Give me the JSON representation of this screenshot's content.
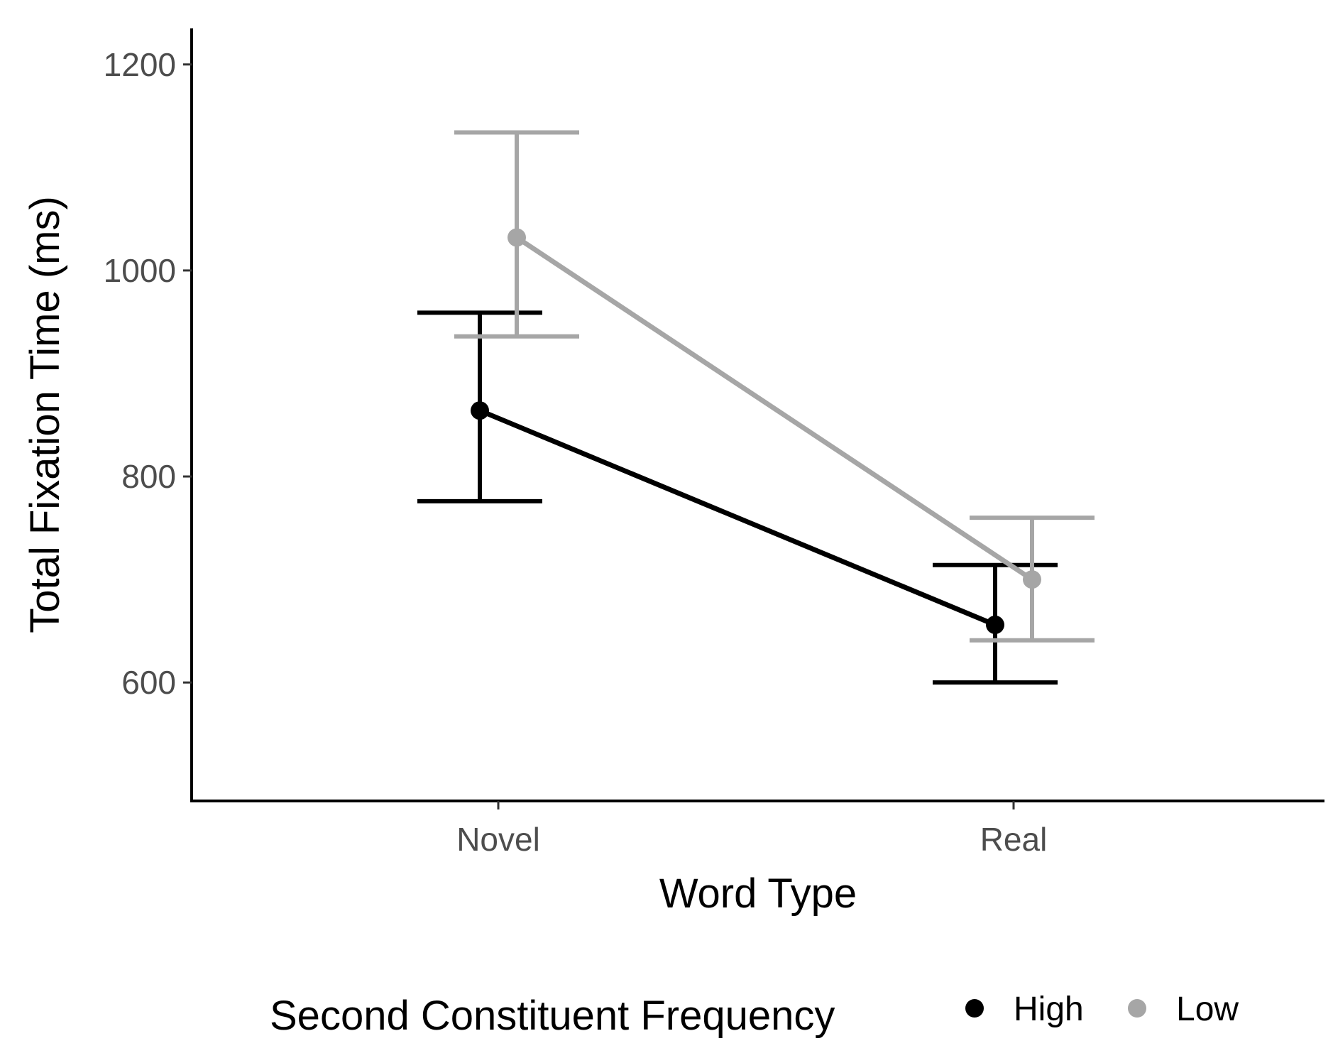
{
  "chart_data": {
    "type": "line",
    "title": "",
    "xlabel": "Word Type",
    "ylabel": "Total Fixation Time (ms)",
    "categories": [
      "Novel",
      "Real"
    ],
    "ylim": [
      485,
      1235
    ],
    "yticks": [
      "600",
      "800",
      "1000",
      "1200"
    ],
    "grid": false,
    "legend": {
      "title": "Second Constituent Frequency",
      "position": "bottom"
    },
    "series": [
      {
        "name": "High",
        "color": "#000000",
        "values": [
          864,
          656
        ],
        "error_low": [
          776,
          600
        ],
        "error_high": [
          959,
          714
        ]
      },
      {
        "name": "Low",
        "color": "#a6a6a6",
        "values": [
          1032,
          700
        ],
        "error_low": [
          936,
          641
        ],
        "error_high": [
          1134,
          760
        ]
      }
    ]
  }
}
